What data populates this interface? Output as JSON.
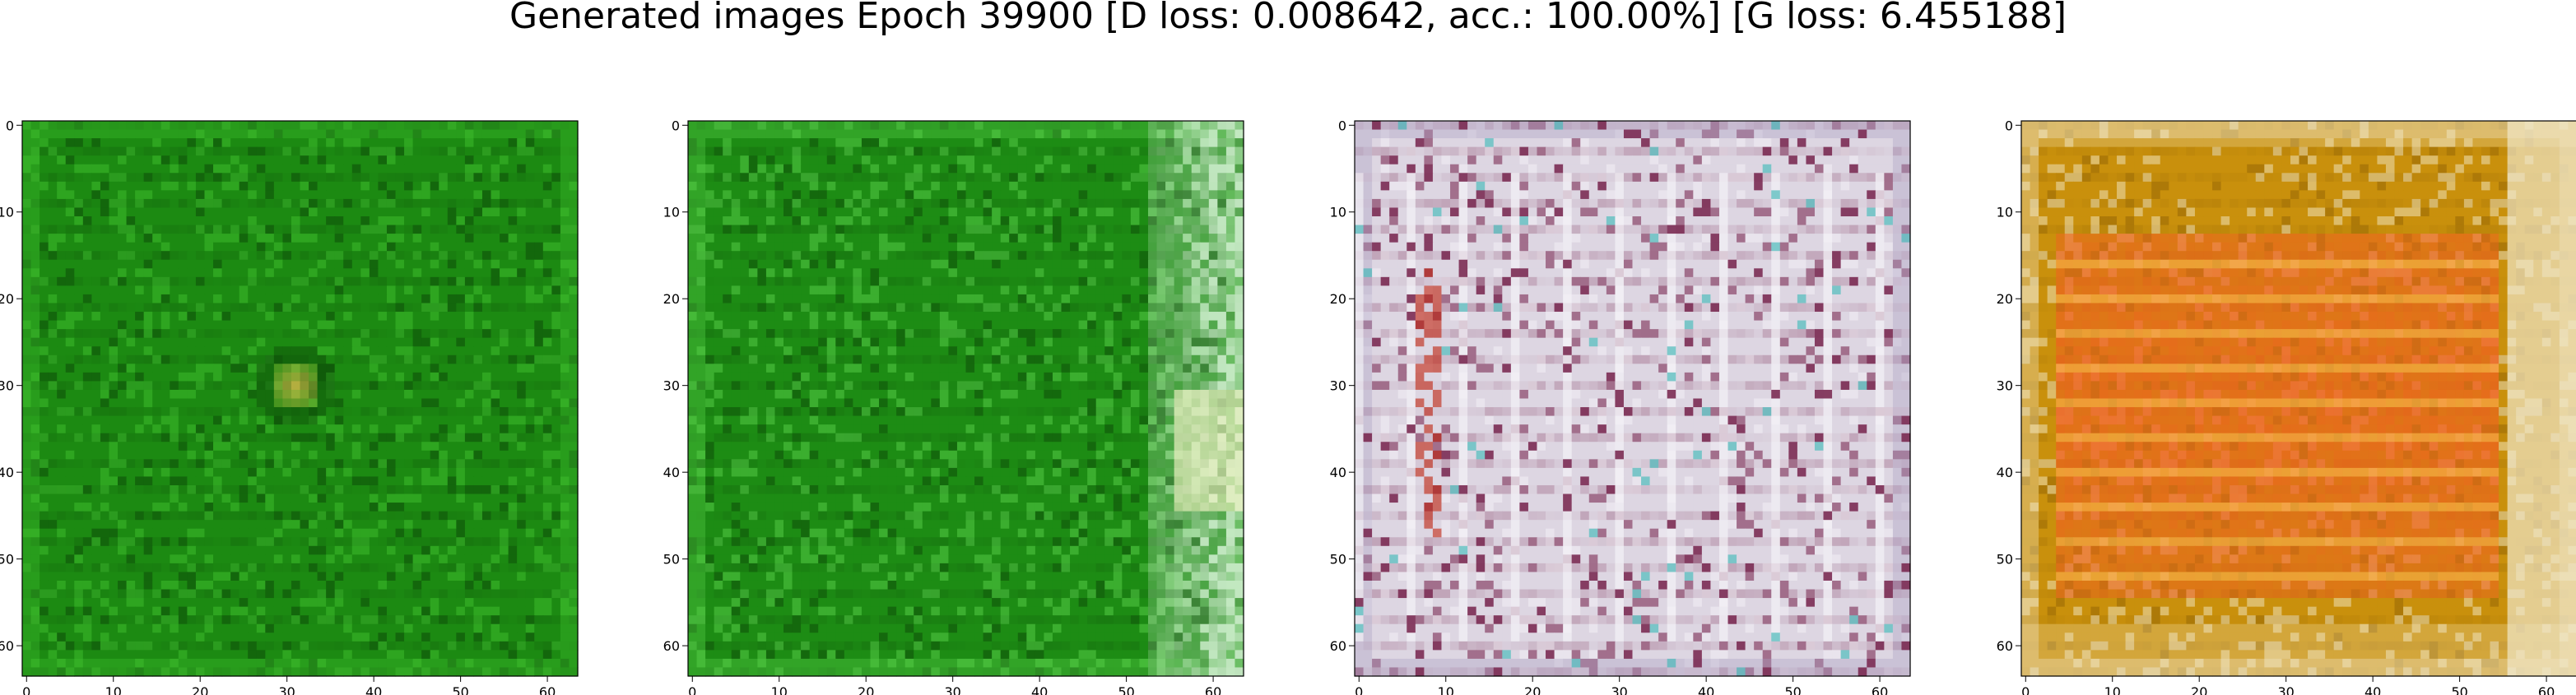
{
  "title": "Generated images Epoch 39900 [D loss: 0.008642, acc.: 100.00%] [G loss: 6.455188]",
  "chart_data": [
    {
      "type": "heatmap",
      "xlim": [
        0,
        63
      ],
      "ylim": [
        63,
        0
      ],
      "x_ticks": [
        0,
        10,
        20,
        30,
        40,
        50,
        60
      ],
      "y_ticks": [
        0,
        10,
        20,
        30,
        40,
        50,
        60
      ],
      "x_tick_labels": [
        "0",
        "10",
        "20",
        "30",
        "40",
        "50",
        "60"
      ],
      "y_tick_labels": [
        "0",
        "10",
        "20",
        "30",
        "40",
        "50",
        "60"
      ],
      "palette": {
        "base": "#1c8a12",
        "dark": "#0d4f08",
        "light": "#3fbf2e",
        "accent": "#d9b84a"
      }
    },
    {
      "type": "heatmap",
      "xlim": [
        0,
        63
      ],
      "ylim": [
        63,
        0
      ],
      "x_ticks": [
        0,
        10,
        20,
        30,
        40,
        50,
        60
      ],
      "y_ticks": [
        0,
        10,
        20,
        30,
        40,
        50,
        60
      ],
      "x_tick_labels": [
        "0",
        "10",
        "20",
        "30",
        "40",
        "50",
        "60"
      ],
      "y_tick_labels": [
        "0",
        "10",
        "20",
        "30",
        "40",
        "50",
        "60"
      ],
      "palette": {
        "base": "#1d8c14",
        "dark": "#0e5209",
        "light": "#58d04a",
        "accent": "#d8f0d8"
      }
    },
    {
      "type": "heatmap",
      "xlim": [
        0,
        63
      ],
      "ylim": [
        63,
        0
      ],
      "x_ticks": [
        0,
        10,
        20,
        30,
        40,
        50,
        60
      ],
      "y_ticks": [
        0,
        10,
        20,
        30,
        40,
        50,
        60
      ],
      "x_tick_labels": [
        "0",
        "10",
        "20",
        "30",
        "40",
        "50",
        "60"
      ],
      "y_tick_labels": [
        "0",
        "10",
        "20",
        "30",
        "40",
        "50",
        "60"
      ],
      "palette": {
        "base": "#ddd6e2",
        "dark": "#7a2a52",
        "light": "#f4f2f7",
        "accent": "#c23a2a"
      }
    },
    {
      "type": "heatmap",
      "xlim": [
        0,
        63
      ],
      "ylim": [
        63,
        0
      ],
      "x_ticks": [
        0,
        10,
        20,
        30,
        40,
        50,
        60
      ],
      "y_ticks": [
        0,
        10,
        20,
        30,
        40,
        50,
        60
      ],
      "x_tick_labels": [
        "0",
        "10",
        "20",
        "30",
        "40",
        "50",
        "60"
      ],
      "y_tick_labels": [
        "0",
        "10",
        "20",
        "30",
        "40",
        "50",
        "60"
      ],
      "palette": {
        "base": "#c9900c",
        "dark": "#9a6a06",
        "light": "#f0e7c8",
        "accent": "#f06020"
      }
    }
  ]
}
